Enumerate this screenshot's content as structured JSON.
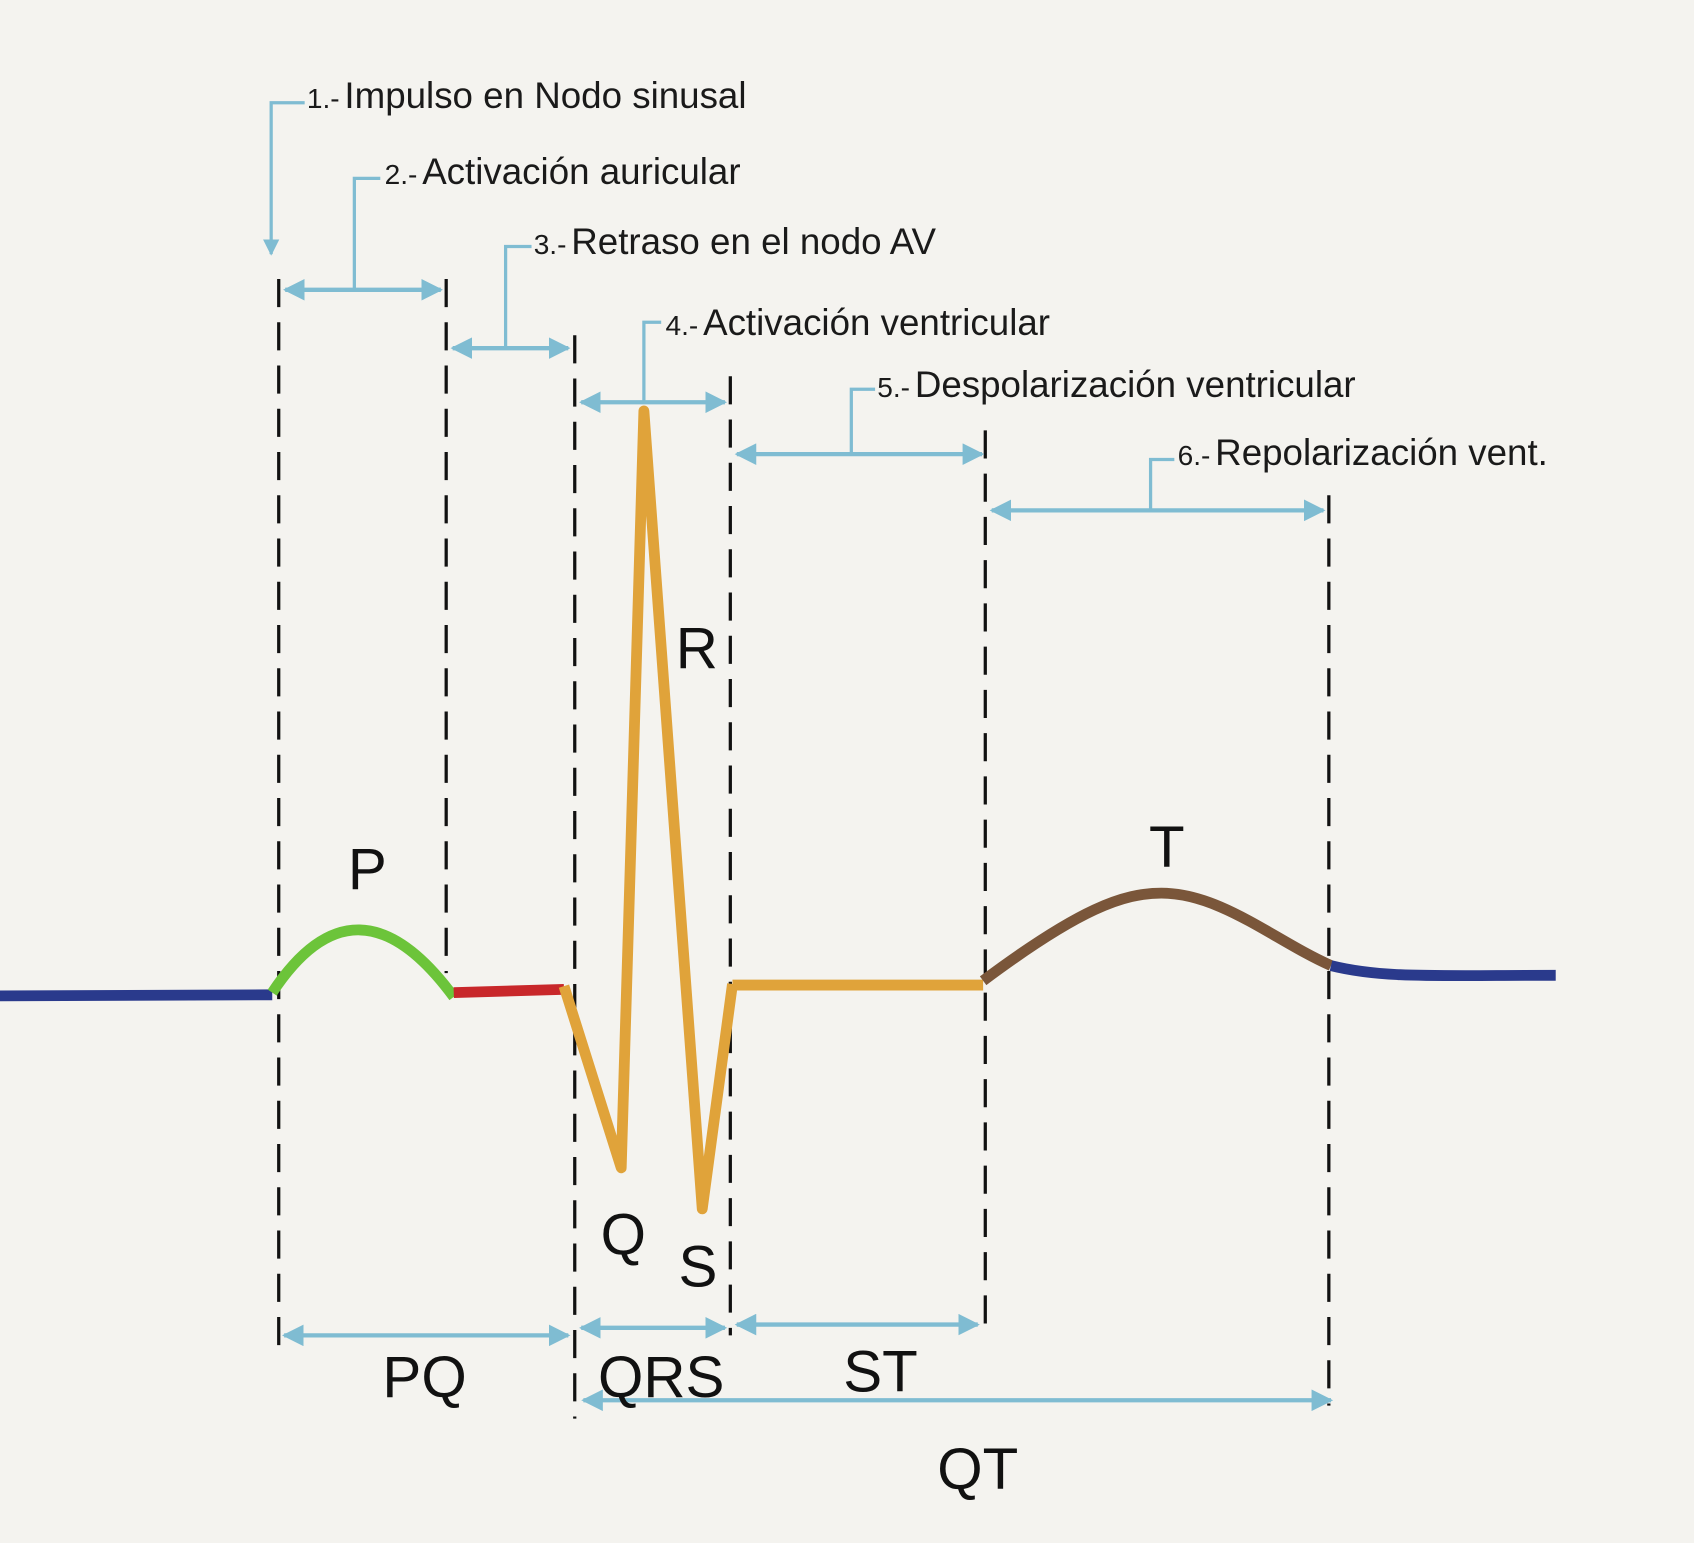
{
  "annotations": [
    {
      "number": "1.-",
      "text": "Impulso en Nodo sinusal"
    },
    {
      "number": "2.-",
      "text": "Activación auricular"
    },
    {
      "number": "3.-",
      "text": "Retraso en el nodo AV"
    },
    {
      "number": "4.-",
      "text": "Activación ventricular"
    },
    {
      "number": "5.-",
      "text": "Despolarización ventricular"
    },
    {
      "number": "6.-",
      "text": "Repolarización vent."
    }
  ],
  "waves": [
    "P",
    "R",
    "Q",
    "S",
    "T"
  ],
  "intervals": [
    "PQ",
    "QRS",
    "ST",
    "QT"
  ]
}
